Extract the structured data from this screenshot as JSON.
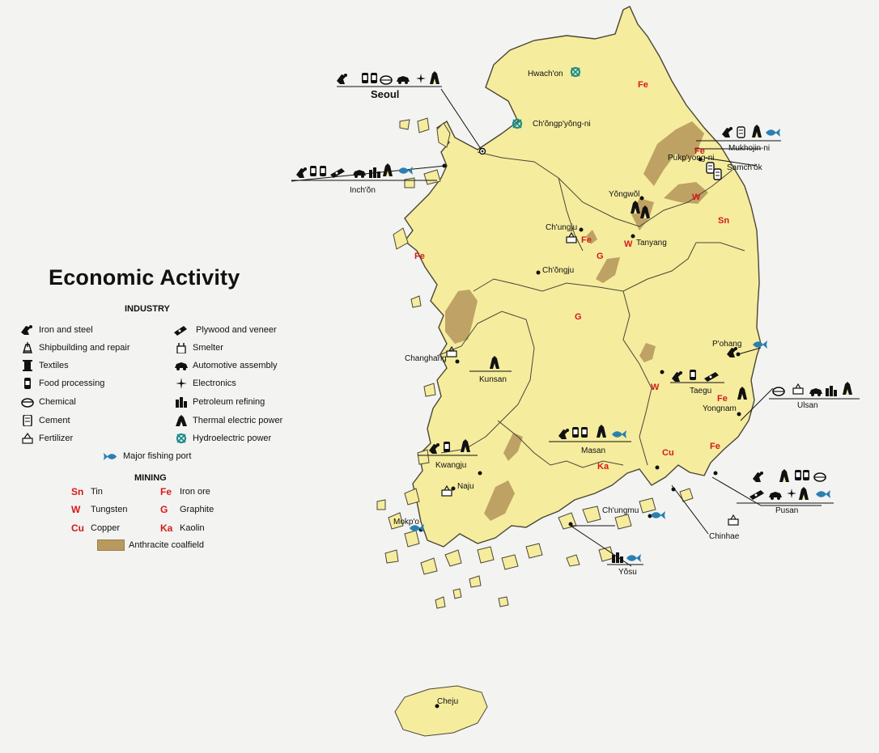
{
  "title": "Economic Activity",
  "legend": {
    "industry_heading": "INDUSTRY",
    "industry_left": [
      {
        "label": "Iron and steel",
        "icon": "iron-steel-icon"
      },
      {
        "label": "Shipbuilding and repair",
        "icon": "ship-icon"
      },
      {
        "label": "Textiles",
        "icon": "textiles-icon"
      },
      {
        "label": "Food processing",
        "icon": "food-can-icon"
      },
      {
        "label": "Chemical",
        "icon": "chemical-icon"
      },
      {
        "label": "Cement",
        "icon": "cement-icon"
      },
      {
        "label": "Fertilizer",
        "icon": "fertilizer-icon"
      }
    ],
    "industry_right": [
      {
        "label": "Plywood and veneer",
        "icon": "plywood-icon"
      },
      {
        "label": "Smelter",
        "icon": "smelter-icon"
      },
      {
        "label": "Automotive assembly",
        "icon": "car-icon"
      },
      {
        "label": "Electronics",
        "icon": "electronics-icon"
      },
      {
        "label": "Petroleum refining",
        "icon": "refinery-icon"
      },
      {
        "label": "Thermal electric power",
        "icon": "thermal-plant-icon"
      },
      {
        "label": "Hydroelectric power",
        "icon": "hydro-icon"
      }
    ],
    "fishing_label": "Major fishing port",
    "mining_heading": "MINING",
    "mining_left": [
      {
        "code": "Sn",
        "label": "Tin"
      },
      {
        "code": "W",
        "label": "Tungsten"
      },
      {
        "code": "Cu",
        "label": "Copper"
      }
    ],
    "mining_right": [
      {
        "code": "Fe",
        "label": "Iron ore"
      },
      {
        "code": "G",
        "label": "Graphite"
      },
      {
        "code": "Ka",
        "label": "Kaolin"
      }
    ],
    "coalfield_label": "Anthracite coalfield"
  },
  "cities": {
    "seoul": "Seoul",
    "inchon": "Inch'ŏn",
    "hwachon": "Hwach'on",
    "chongpyong": "Ch'ŏngp'yŏng-ni",
    "mukhojin": "Mukhojin-ni",
    "pukpyong": "Pukp'yong-ni",
    "samchok": "Samch'ŏk",
    "yongwol": "Yŏngwŏl",
    "chungju": "Ch'ungju",
    "tanyang": "Tanyang",
    "chongju": "Ch'ŏngju",
    "changhang": "Changhang",
    "kunsan": "Kunsan",
    "pohang": "P'ohang",
    "taegu": "Taegu",
    "yongnam": "Yongnam",
    "ulsan": "Ulsan",
    "kwangju": "Kwangju",
    "naju": "Naju",
    "masan": "Masan",
    "chungmu": "Ch'ungmu",
    "mokpo": "Mokp'o",
    "yosu": "Yŏsu",
    "chinhae": "Chinhae",
    "pusan": "Pusan",
    "cheju": "Cheju"
  },
  "mineral_labels": {
    "fe_north": "Fe",
    "fe_east": "Fe",
    "fe_chungju": "Fe",
    "fe_west": "Fe",
    "fe_yongnam": "Fe",
    "fe_pusan": "Fe",
    "w_east": "W",
    "w_tanyang": "W",
    "w_taegu": "W",
    "sn_east": "Sn",
    "g_center": "G",
    "g_north": "G",
    "ka_south": "Ka",
    "cu_south": "Cu"
  },
  "colors": {
    "land": "#f5ec9e",
    "coast": "#4a4637",
    "coal": "#b99a5e",
    "mineral_code": "#d41a1a",
    "fish": "#2a7fb3",
    "hydro": "#1e8c8c",
    "background": "#f3f3f1"
  }
}
